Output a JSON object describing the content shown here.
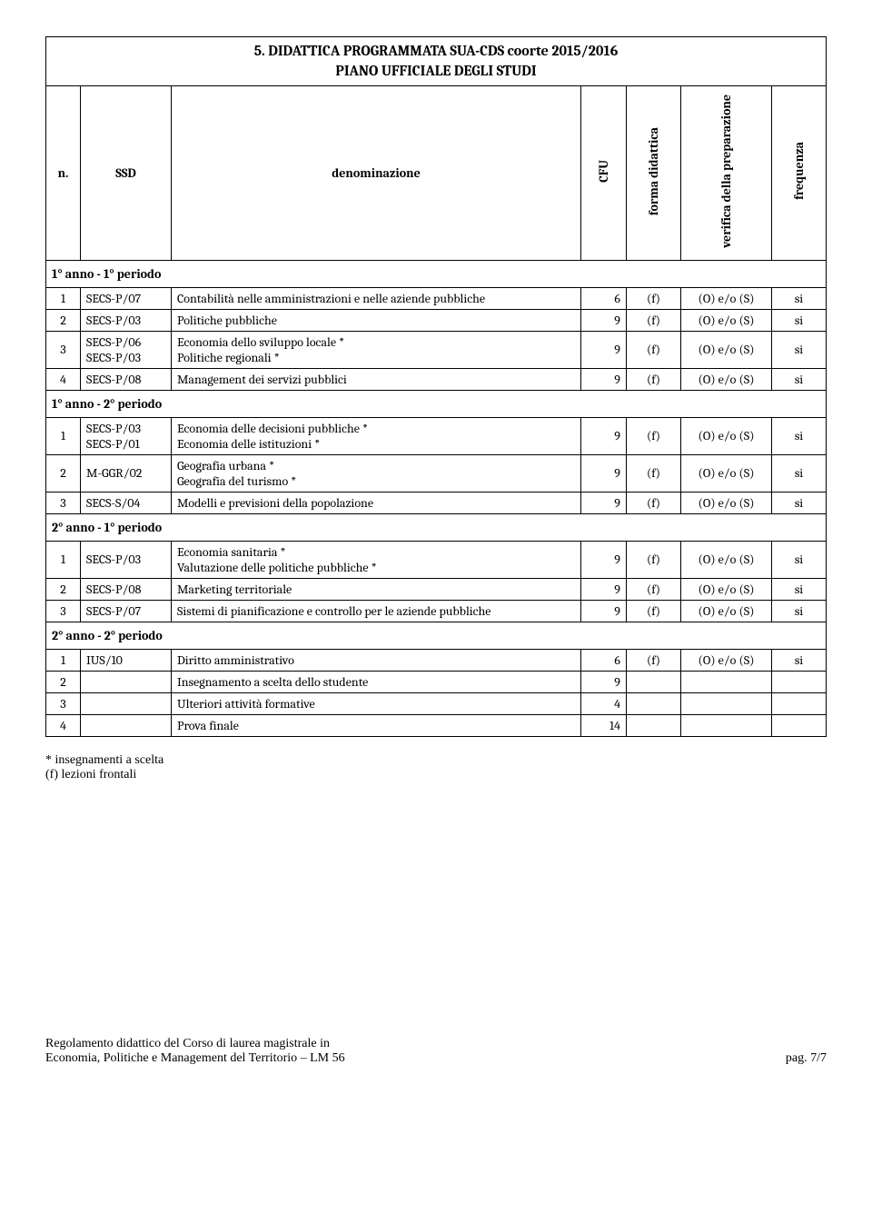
{
  "title_line1": "5. DIDATTICA PROGRAMMATA SUA-CDS coorte  2015/2016",
  "title_line2": "PIANO UFFICIALE DEGLI STUDI",
  "headers": {
    "n": "n.",
    "ssd": "SSD",
    "denom": "denominazione",
    "cfu": "CFU",
    "forma": "forma didattica",
    "verifica": "verifica della preparazione",
    "freq": "frequenza"
  },
  "sections": [
    {
      "label": "1° anno -  1° periodo",
      "rows": [
        {
          "n": "1",
          "ssd": "SECS-P/07",
          "denom": "Contabilità nelle amministrazioni e nelle aziende pubbliche",
          "cfu": "6",
          "forma": "(f)",
          "verifica": "(O) e/o (S)",
          "freq": "si"
        },
        {
          "n": "2",
          "ssd": "SECS-P/03",
          "denom": "Politiche pubbliche",
          "cfu": "9",
          "forma": "(f)",
          "verifica": "(O) e/o (S)",
          "freq": "si"
        },
        {
          "n": "3",
          "ssd": "SECS-P/06\nSECS-P/03",
          "denom": "Economia dello sviluppo locale *\nPolitiche regionali *",
          "cfu": "9",
          "forma": "(f)",
          "verifica": "(O) e/o (S)",
          "freq": "si"
        },
        {
          "n": "4",
          "ssd": "SECS-P/08",
          "denom": "Management dei servizi pubblici",
          "cfu": "9",
          "forma": "(f)",
          "verifica": "(O) e/o (S)",
          "freq": "si"
        }
      ]
    },
    {
      "label": "1° anno -  2° periodo",
      "rows": [
        {
          "n": "1",
          "ssd": "SECS-P/03\nSECS-P/01",
          "denom": "Economia delle decisioni pubbliche *\nEconomia delle istituzioni *",
          "cfu": "9",
          "forma": "(f)",
          "verifica": "(O) e/o (S)",
          "freq": "si"
        },
        {
          "n": "2",
          "ssd": "M-GGR/02",
          "denom": "Geografia urbana *\nGeografia del turismo *",
          "cfu": "9",
          "forma": "(f)",
          "verifica": "(O) e/o (S)",
          "freq": "si"
        },
        {
          "n": "3",
          "ssd": "SECS-S/04",
          "denom": "Modelli e previsioni della popolazione",
          "cfu": "9",
          "forma": "(f)",
          "verifica": "(O) e/o (S)",
          "freq": "si"
        }
      ]
    },
    {
      "label": "2° anno -  1° periodo",
      "rows": [
        {
          "n": "1",
          "ssd": "SECS-P/03",
          "denom": "Economia sanitaria *\nValutazione delle politiche pubbliche *",
          "cfu": "9",
          "forma": "(f)",
          "verifica": "(O) e/o (S)",
          "freq": "si"
        },
        {
          "n": "2",
          "ssd": "SECS-P/08",
          "denom": "Marketing territoriale",
          "cfu": "9",
          "forma": "(f)",
          "verifica": "(O) e/o (S)",
          "freq": "si"
        },
        {
          "n": "3",
          "ssd": "SECS-P/07",
          "denom": "Sistemi di pianificazione  e controllo per le aziende pubbliche",
          "cfu": "9",
          "forma": "(f)",
          "verifica": "(O) e/o (S)",
          "freq": "si"
        }
      ]
    },
    {
      "label": "2° anno -  2° periodo",
      "rows": [
        {
          "n": "1",
          "ssd": "IUS/10",
          "denom": "Diritto amministrativo",
          "cfu": "6",
          "forma": "(f)",
          "verifica": "(O) e/o (S)",
          "freq": "si"
        },
        {
          "n": "2",
          "ssd": "",
          "denom": "Insegnamento a scelta dello studente",
          "cfu": "9",
          "forma": "",
          "verifica": "",
          "freq": ""
        },
        {
          "n": "3",
          "ssd": "",
          "denom": "Ulteriori attività formative",
          "cfu": "4",
          "forma": "",
          "verifica": "",
          "freq": ""
        },
        {
          "n": "4",
          "ssd": "",
          "denom": "Prova finale",
          "cfu": "14",
          "forma": "",
          "verifica": "",
          "freq": ""
        }
      ]
    }
  ],
  "notes": {
    "line1": "*   insegnamenti a scelta",
    "line2": "(f) lezioni frontali"
  },
  "footer": {
    "left_line1": "Regolamento didattico del Corso di laurea magistrale in",
    "left_line2": "Economia, Politiche e Management del Territorio – LM 56",
    "right": "pag.   7/7"
  },
  "style": {
    "border_color": "#000000",
    "font_body": "Cambria, Georgia, serif",
    "font_size_body": 14,
    "font_size_title": 16
  }
}
